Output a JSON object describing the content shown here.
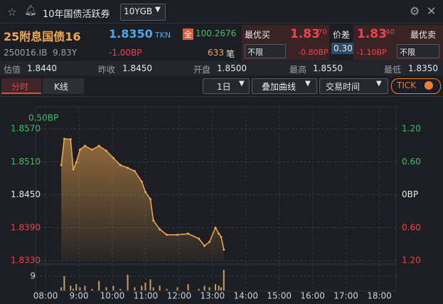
{
  "header": {
    "title": "10年国债活跃券",
    "dropdown": "10YGB"
  },
  "quote": {
    "name": "25附息国债16",
    "price": "1.8350",
    "source": "TKN",
    "badge": "全",
    "clean_price": "100.2676",
    "code": "250016.IB",
    "term": "9.83Y",
    "change": "-1.00BP",
    "trades": "633",
    "trades_unit": "笔"
  },
  "bid": {
    "label": "最优买",
    "price": "1.83",
    "price_small": "70",
    "filter": "不限",
    "change": "-0.80BP"
  },
  "spread": {
    "label": "价差",
    "value": "0.30"
  },
  "ask": {
    "label": "最优卖",
    "price": "1.83",
    "price_small": "40",
    "filter": "不限",
    "change": "-1.10BP"
  },
  "stats": [
    {
      "label": "估值",
      "value": "1.8440"
    },
    {
      "label": "昨收",
      "value": "1.8450"
    },
    {
      "label": "开盘",
      "value": "1.8500"
    },
    {
      "label": "最高",
      "value": "1.8550"
    },
    {
      "label": "最低",
      "value": "1.8350"
    }
  ],
  "toolbar": {
    "tabs": [
      "分时",
      "K线"
    ],
    "period": "1日",
    "overlay": "叠加曲线",
    "session": "交易时间",
    "tick": "TICK"
  },
  "chart_data": {
    "type": "line",
    "annotation": "0.50BP",
    "color": "#f0a850",
    "x": [
      8.47,
      8.56,
      8.75,
      8.83,
      8.92,
      9.03,
      9.18,
      9.39,
      9.6,
      9.82,
      10.03,
      10.24,
      10.46,
      10.67,
      10.88,
      10.99,
      11.14,
      11.23,
      11.42,
      11.63,
      11.95,
      12.27,
      12.59,
      12.76,
      12.91,
      13.09,
      13.19,
      13.26,
      13.34
    ],
    "values": [
      1.8504,
      1.8552,
      1.8551,
      1.8496,
      1.8509,
      1.8532,
      1.8539,
      1.8532,
      1.8539,
      1.853,
      1.8517,
      1.8504,
      1.8499,
      1.8493,
      1.8474,
      1.8455,
      1.8442,
      1.8403,
      1.8387,
      1.8377,
      1.8377,
      1.8379,
      1.837,
      1.8357,
      1.8364,
      1.839,
      1.8379,
      1.8373,
      1.835
    ],
    "volume": {
      "values": [
        2,
        9,
        3,
        1,
        4,
        2,
        3,
        1,
        6,
        2,
        3,
        1,
        10,
        2,
        3,
        5,
        7,
        2,
        3,
        1,
        2,
        4,
        1,
        3,
        2,
        4,
        3,
        2,
        13
      ],
      "ylim": [
        0,
        14.4
      ],
      "yticks": [
        9
      ],
      "color": "#c8a060"
    },
    "xlim": [
      7.7,
      18.5
    ],
    "xticks": [
      {
        "value": 8,
        "label": "08:00"
      },
      {
        "value": 9,
        "label": "9:00"
      },
      {
        "value": 10,
        "label": "10:00"
      },
      {
        "value": 11,
        "label": "11:00"
      },
      {
        "value": 12,
        "label": "12:00"
      },
      {
        "value": 13,
        "label": "13:00"
      },
      {
        "value": 14,
        "label": "14:00"
      },
      {
        "value": 15,
        "label": "15:00"
      },
      {
        "value": 16,
        "label": "16:00"
      },
      {
        "value": 17,
        "label": "17:00"
      },
      {
        "value": 18,
        "label": "18:00"
      }
    ],
    "ylim": [
      1.833,
      1.857
    ],
    "yticks": [
      {
        "value": 1.857,
        "label": "1.8570"
      },
      {
        "value": 1.851,
        "label": "1.8510"
      },
      {
        "value": 1.845,
        "label": "1.8450"
      },
      {
        "value": 1.839,
        "label": "1.8390"
      },
      {
        "value": 1.833,
        "label": "1.8330"
      }
    ],
    "y2lim": [
      -1.2,
      1.2
    ],
    "y2ticks": [
      {
        "value": 1.2,
        "label": "1.20"
      },
      {
        "value": 0.6,
        "label": "0.60"
      },
      {
        "value": 0,
        "label": "0BP"
      },
      {
        "value": -0.6,
        "label": "0.60"
      },
      {
        "value": -1.2,
        "label": "1.20"
      }
    ],
    "grid": true
  }
}
